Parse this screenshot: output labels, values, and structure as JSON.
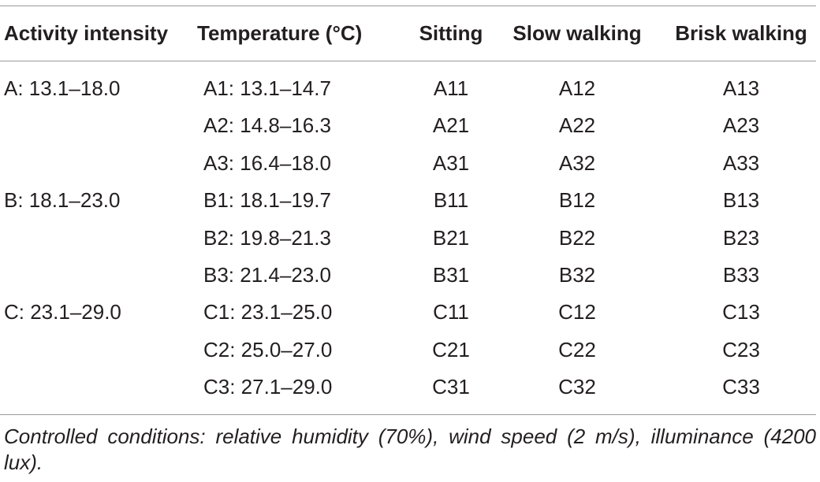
{
  "table": {
    "header": [
      "Activity intensity",
      "Temperature (°C)",
      "Sitting",
      "Slow walking",
      "Brisk walking"
    ],
    "groups": [
      {
        "label": "A: 13.1–18.0",
        "rows": [
          [
            "A1: 13.1–14.7",
            "A11",
            "A12",
            "A13"
          ],
          [
            "A2: 14.8–16.3",
            "A21",
            "A22",
            "A23"
          ],
          [
            "A3: 16.4–18.0",
            "A31",
            "A32",
            "A33"
          ]
        ]
      },
      {
        "label": "B: 18.1–23.0",
        "rows": [
          [
            "B1: 18.1–19.7",
            "B11",
            "B12",
            "B13"
          ],
          [
            "B2: 19.8–21.3",
            "B21",
            "B22",
            "B23"
          ],
          [
            "B3: 21.4–23.0",
            "B31",
            "B32",
            "B33"
          ]
        ]
      },
      {
        "label": "C: 23.1–29.0",
        "rows": [
          [
            "C1: 23.1–25.0",
            "C11",
            "C12",
            "C13"
          ],
          [
            "C2: 25.0–27.0",
            "C21",
            "C22",
            "C23"
          ],
          [
            "C3: 27.1–29.0",
            "C31",
            "C32",
            "C33"
          ]
        ]
      }
    ],
    "footnote": "Controlled conditions: relative humidity (70%), wind speed (2 m/s), illumi­nance (4200 lux)."
  }
}
